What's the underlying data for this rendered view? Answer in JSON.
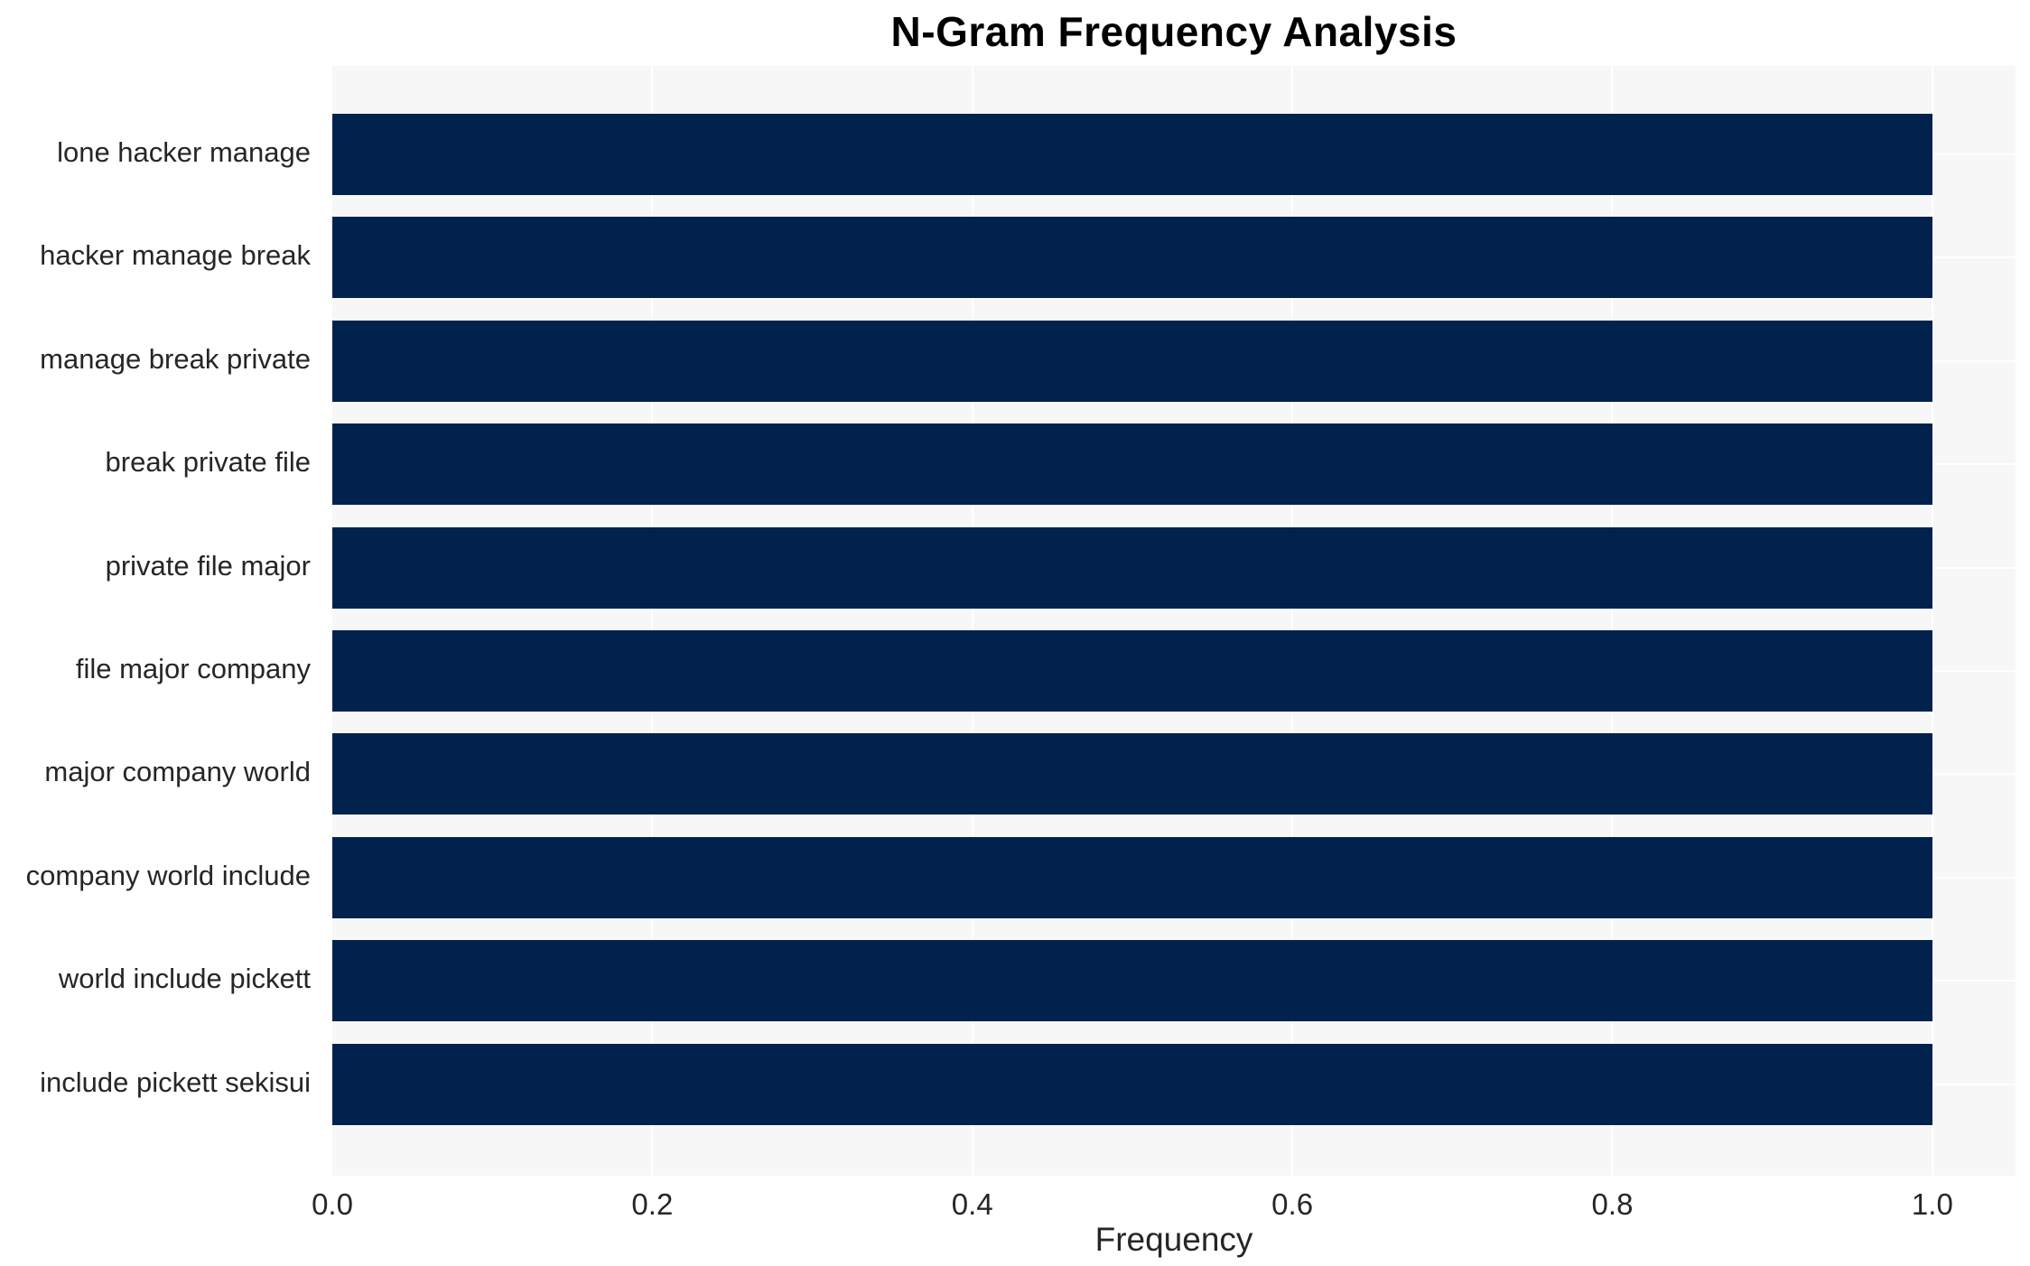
{
  "chart_data": {
    "type": "bar",
    "orientation": "horizontal",
    "title": "N-Gram Frequency Analysis",
    "xlabel": "Frequency",
    "ylabel": "",
    "categories": [
      "lone hacker manage",
      "hacker manage break",
      "manage break private",
      "break private file",
      "private file major",
      "file major company",
      "major company world",
      "company world include",
      "world include pickett",
      "include pickett sekisui"
    ],
    "values": [
      1.0,
      1.0,
      1.0,
      1.0,
      1.0,
      1.0,
      1.0,
      1.0,
      1.0,
      1.0
    ],
    "xticks": [
      {
        "value": 0.0,
        "label": "0.0"
      },
      {
        "value": 0.2,
        "label": "0.2"
      },
      {
        "value": 0.4,
        "label": "0.4"
      },
      {
        "value": 0.6,
        "label": "0.6"
      },
      {
        "value": 0.8,
        "label": "0.8"
      },
      {
        "value": 1.0,
        "label": "1.0"
      }
    ],
    "xlim": [
      0,
      1.052
    ],
    "grid": true,
    "legend": null,
    "colors": {
      "bar": "#01224d",
      "plot_background": "#f7f7f7",
      "gridline": "#ffffff",
      "text": "#262626",
      "title": "#000000",
      "page_background": "#ffffff"
    }
  }
}
